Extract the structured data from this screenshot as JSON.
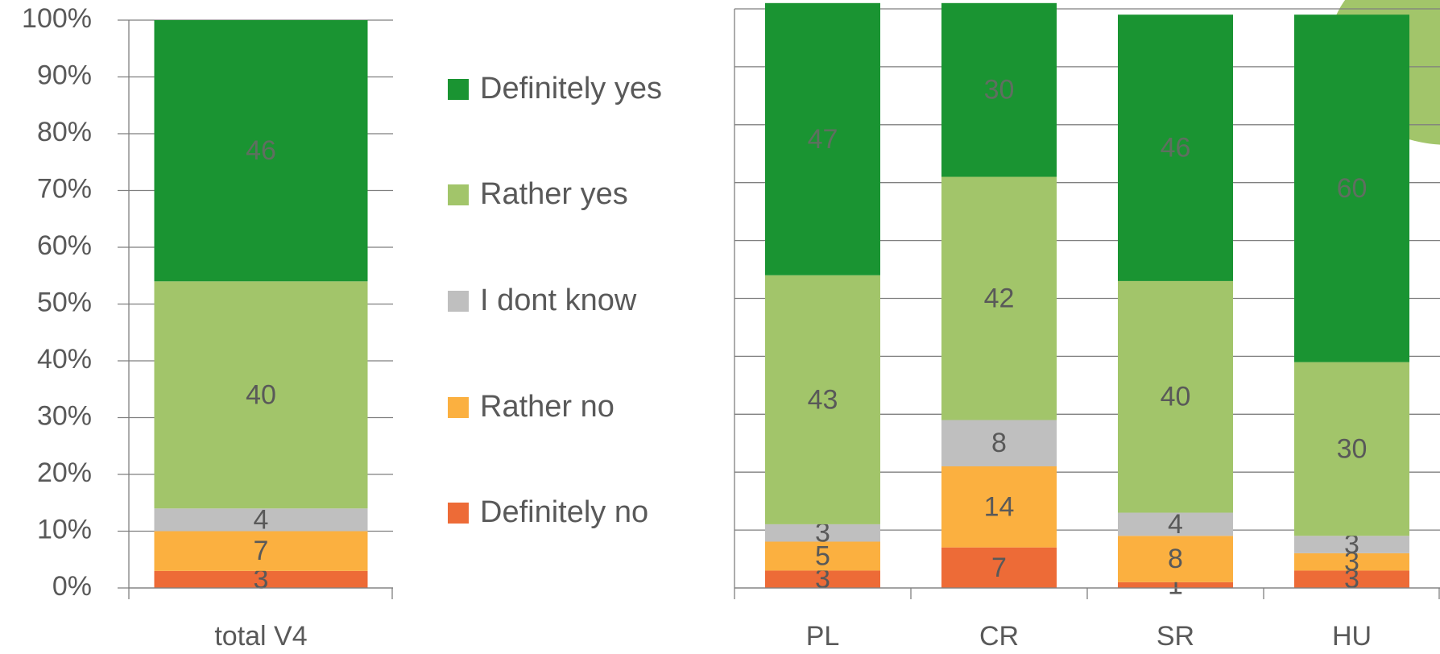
{
  "chart_data": [
    {
      "type": "bar",
      "stacked": true,
      "categories": [
        "total V4"
      ],
      "series": [
        {
          "name": "Definitely no",
          "color": "#ed6b37",
          "values": [
            3
          ]
        },
        {
          "name": "Rather no",
          "color": "#fbb040",
          "values": [
            7
          ]
        },
        {
          "name": "I dont know",
          "color": "#bfbfbf",
          "values": [
            4
          ]
        },
        {
          "name": "Rather yes",
          "color": "#a2c56a",
          "values": [
            40
          ]
        },
        {
          "name": "Definitely yes",
          "color": "#1a9432",
          "values": [
            46
          ]
        }
      ],
      "ylim": [
        0,
        100
      ],
      "yticks": [
        {
          "value": 0,
          "label": "0%"
        },
        {
          "value": 10,
          "label": "10%"
        },
        {
          "value": 20,
          "label": "20%"
        },
        {
          "value": 30,
          "label": "30%"
        },
        {
          "value": 40,
          "label": "40%"
        },
        {
          "value": 50,
          "label": "50%"
        },
        {
          "value": 60,
          "label": "60%"
        },
        {
          "value": 70,
          "label": "70%"
        },
        {
          "value": 80,
          "label": "80%"
        },
        {
          "value": 90,
          "label": "90%"
        },
        {
          "value": 100,
          "label": "100%"
        }
      ],
      "grid": true
    },
    {
      "type": "bar",
      "stacked": true,
      "categories": [
        "PL",
        "CR",
        "SR",
        "HU"
      ],
      "series": [
        {
          "color": "#ed6b37",
          "values": [
            3,
            7,
            1,
            3
          ]
        },
        {
          "color": "#fbb040",
          "values": [
            5,
            14,
            8,
            3
          ]
        },
        {
          "color": "#bfbfbf",
          "values": [
            3,
            8,
            4,
            3
          ]
        },
        {
          "color": "#a2c56a",
          "values": [
            43,
            42,
            40,
            30
          ]
        },
        {
          "color": "#1a9432",
          "values": [
            47,
            30,
            46,
            60
          ]
        }
      ],
      "ylim": [
        0,
        100
      ],
      "yticks": [
        0,
        10,
        20,
        30,
        40,
        50,
        60,
        70,
        80,
        90,
        100
      ],
      "grid": true
    }
  ]
}
